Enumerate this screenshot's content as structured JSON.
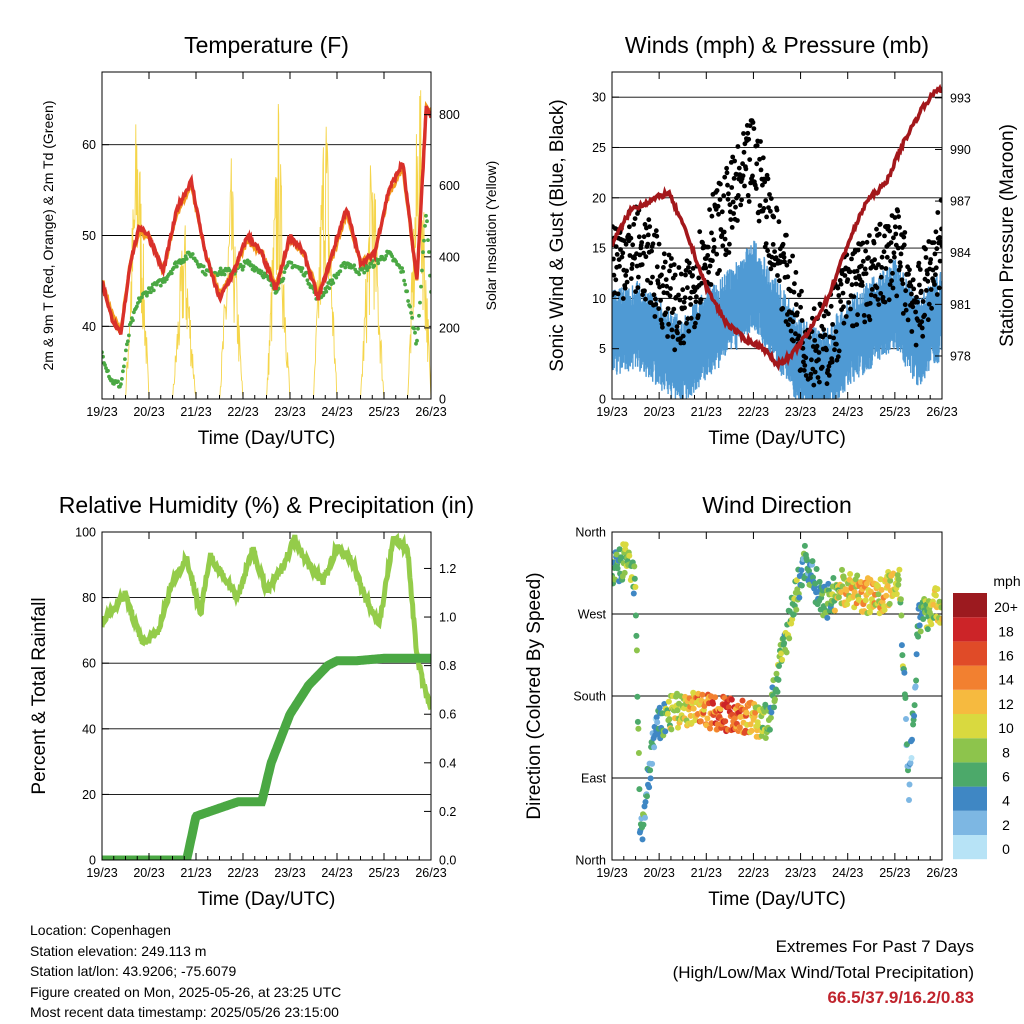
{
  "chart_data": [
    {
      "type": "line",
      "title": "Temperature (F)",
      "xlabel": "Time (Day/UTC)",
      "ylabel": "2m & 9m T (Red, Orange) & 2m Td (Green)",
      "y2label": "Solar Insolation (Yellow)",
      "x_ticks": [
        "19/23",
        "20/23",
        "21/23",
        "22/23",
        "23/23",
        "24/23",
        "25/23",
        "26/23"
      ],
      "ylim": [
        32,
        68
      ],
      "y_ticks": [
        40,
        50,
        60
      ],
      "y2lim": [
        0,
        920
      ],
      "y2_ticks": [
        0,
        200,
        400,
        600,
        800
      ],
      "grid_y": [
        40,
        50,
        60
      ],
      "series": [
        {
          "name": "2m T",
          "color": "#d9302a",
          "axis": "left",
          "x": [
            0,
            0.2,
            0.4,
            0.6,
            0.8,
            1.0,
            1.3,
            1.6,
            1.9,
            2.2,
            2.5,
            2.8,
            3.1,
            3.4,
            3.7,
            4.0,
            4.3,
            4.6,
            4.9,
            5.2,
            5.5,
            5.8,
            6.1,
            6.4,
            6.7,
            6.9,
            7.0
          ],
          "y": [
            45,
            41,
            39,
            47,
            51,
            50,
            46,
            53,
            56,
            48,
            43,
            46,
            50,
            48,
            44,
            50,
            48,
            43,
            48,
            53,
            47,
            48,
            55,
            58,
            45,
            64,
            63
          ]
        },
        {
          "name": "9m T",
          "color": "#f39a1e",
          "axis": "left",
          "x": [
            0,
            0.2,
            0.4,
            0.6,
            0.8,
            1.0,
            1.3,
            1.6,
            1.9,
            2.2,
            2.5,
            2.8,
            3.1,
            3.4,
            3.7,
            4.0,
            4.3,
            4.6,
            4.9,
            5.2,
            5.5,
            5.8,
            6.1,
            6.4,
            6.7,
            6.9,
            7.0
          ],
          "y": [
            45,
            41.5,
            39.5,
            47,
            50.5,
            50,
            46,
            52.5,
            55.5,
            48,
            43.5,
            46,
            49.5,
            48,
            44.5,
            49.5,
            48,
            43.5,
            47.5,
            52.5,
            47,
            48,
            54.5,
            57.5,
            45,
            64.5,
            63.5
          ]
        },
        {
          "name": "2m Td",
          "color": "#4aa843",
          "axis": "left",
          "x": [
            0,
            0.2,
            0.4,
            0.6,
            0.8,
            1.0,
            1.3,
            1.6,
            1.9,
            2.2,
            2.5,
            2.8,
            3.1,
            3.4,
            3.7,
            4.0,
            4.3,
            4.6,
            4.9,
            5.2,
            5.5,
            5.8,
            6.1,
            6.4,
            6.7,
            6.9,
            7.0
          ],
          "y": [
            37,
            34,
            33.5,
            40,
            43,
            44,
            45,
            47,
            48,
            46,
            46,
            46,
            47,
            46,
            44,
            47,
            46,
            43,
            45,
            47,
            46,
            47,
            48,
            46,
            38,
            53,
            44
          ]
        },
        {
          "name": "Solar Insolation",
          "color": "#f5d54a",
          "axis": "right",
          "x": [
            0.5,
            0.75,
            1.0,
            1.5,
            1.75,
            2.0,
            2.5,
            2.75,
            3.0,
            3.5,
            3.75,
            4.0,
            4.5,
            4.75,
            5.0,
            5.5,
            5.75,
            6.0,
            6.5,
            6.75,
            7.0
          ],
          "y": [
            0,
            830,
            0,
            0,
            500,
            0,
            0,
            620,
            0,
            0,
            780,
            0,
            0,
            860,
            0,
            0,
            720,
            0,
            0,
            900,
            0
          ]
        }
      ]
    },
    {
      "type": "scatter",
      "title": "Winds (mph) & Pressure (mb)",
      "xlabel": "Time (Day/UTC)",
      "ylabel": "Sonic Wind & Gust (Blue, Black)",
      "y2label": "Station Pressure (Maroon)",
      "x_ticks": [
        "19/23",
        "20/23",
        "21/23",
        "22/23",
        "23/23",
        "24/23",
        "25/23",
        "26/23"
      ],
      "ylim": [
        0,
        32.5
      ],
      "y_ticks": [
        0,
        5,
        10,
        15,
        20,
        25,
        30
      ],
      "y2lim": [
        975.5,
        994.5
      ],
      "y2_ticks": [
        978,
        981,
        984,
        987,
        990,
        993
      ],
      "grid_y": [
        5,
        10,
        15,
        20,
        25,
        30
      ],
      "series": [
        {
          "name": "Sonic Wind",
          "color": "#4f9ad4",
          "axis": "left",
          "x": [
            0,
            0.5,
            1.0,
            1.5,
            2.0,
            2.5,
            3.0,
            3.5,
            4.0,
            4.5,
            5.0,
            5.5,
            6.0,
            6.5,
            7.0
          ],
          "y": [
            7,
            8,
            6,
            4,
            7,
            9,
            12,
            8,
            4,
            3,
            6,
            8,
            10,
            6,
            9
          ]
        },
        {
          "name": "Gust",
          "color": "#000000",
          "axis": "left",
          "x": [
            0,
            0.5,
            1.0,
            1.5,
            2.0,
            2.5,
            3.0,
            3.5,
            4.0,
            4.5,
            5.0,
            5.5,
            6.0,
            6.5,
            7.0
          ],
          "y": [
            14,
            15,
            12,
            8,
            15,
            19,
            24,
            15,
            7,
            5,
            11,
            12,
            15,
            9,
            16
          ]
        },
        {
          "name": "Station Pressure",
          "color": "#a3171b",
          "axis": "right",
          "x": [
            0,
            0.4,
            0.8,
            1.2,
            1.6,
            2.0,
            2.4,
            2.8,
            3.2,
            3.5,
            3.8,
            4.2,
            4.6,
            5.0,
            5.4,
            5.8,
            6.2,
            6.6,
            6.9,
            7.0
          ],
          "y": [
            984.5,
            986.5,
            987,
            987.5,
            985,
            982,
            980,
            979,
            978.5,
            977.5,
            978,
            979.5,
            981.5,
            984.5,
            987,
            988,
            990.5,
            992.5,
            993.5,
            993.5
          ]
        }
      ]
    },
    {
      "type": "line",
      "title": "Relative Humidity (%) & Precipitation (in)",
      "xlabel": "Time (Day/UTC)",
      "ylabel": "Percent & Total Rainfall",
      "x_ticks": [
        "19/23",
        "20/23",
        "21/23",
        "22/23",
        "23/23",
        "24/23",
        "25/23",
        "26/23"
      ],
      "ylim": [
        0,
        100
      ],
      "y_ticks": [
        0,
        20,
        40,
        60,
        80,
        100
      ],
      "y2lim": [
        0,
        1.35
      ],
      "y2_ticks": [
        0.0,
        0.2,
        0.4,
        0.6,
        0.8,
        1.0,
        1.2
      ],
      "grid_y": [
        20,
        40,
        60,
        80
      ],
      "series": [
        {
          "name": "Relative Humidity",
          "color": "#94cc4a",
          "axis": "left",
          "x": [
            0,
            0.2,
            0.5,
            0.7,
            0.9,
            1.2,
            1.5,
            1.8,
            2.1,
            2.3,
            2.6,
            2.9,
            3.2,
            3.5,
            3.8,
            4.1,
            4.4,
            4.7,
            5.0,
            5.3,
            5.6,
            5.9,
            6.2,
            6.5,
            6.7,
            6.9,
            7.0
          ],
          "y": [
            72,
            76,
            81,
            72,
            66,
            70,
            85,
            92,
            75,
            93,
            86,
            80,
            95,
            82,
            88,
            98,
            90,
            85,
            95,
            92,
            80,
            72,
            98,
            95,
            62,
            50,
            47
          ]
        },
        {
          "name": "Total Precipitation",
          "color": "#4aa843",
          "axis": "right",
          "x": [
            0,
            1.8,
            2.0,
            2.3,
            2.9,
            3.4,
            3.6,
            3.8,
            4.0,
            4.4,
            4.8,
            5.0,
            5.4,
            6.0,
            7.0
          ],
          "y": [
            0,
            0,
            0.18,
            0.2,
            0.24,
            0.24,
            0.4,
            0.5,
            0.6,
            0.72,
            0.8,
            0.82,
            0.82,
            0.83,
            0.83
          ]
        }
      ]
    },
    {
      "type": "scatter",
      "title": "Wind Direction",
      "xlabel": "Time (Day/UTC)",
      "ylabel": "Direction (Colored By Speed)",
      "x_ticks": [
        "19/23",
        "20/23",
        "21/23",
        "22/23",
        "23/23",
        "24/23",
        "25/23",
        "26/23"
      ],
      "y_ticks": [
        "North",
        "East",
        "South",
        "West",
        "North"
      ],
      "ylim": [
        0,
        360
      ],
      "colorbar_title": "mph",
      "colorbar_labels": [
        "0",
        "2",
        "4",
        "6",
        "8",
        "10",
        "12",
        "14",
        "16",
        "18",
        "20+"
      ],
      "colorbar_colors": [
        "#b7e3f6",
        "#7db7e3",
        "#3f87c4",
        "#4ca96a",
        "#8dc44c",
        "#d9d93f",
        "#f6ba3f",
        "#f28030",
        "#e04b28",
        "#cc2428",
        "#9c1a1f"
      ],
      "series": [
        {
          "name": "Direction",
          "x": [
            0.1,
            0.3,
            0.5,
            0.6,
            0.7,
            0.9,
            1.2,
            1.5,
            2.0,
            2.5,
            3.0,
            3.3,
            3.8,
            4.1,
            4.5,
            4.9,
            5.3,
            5.7,
            6.1,
            6.3,
            6.5,
            6.8,
            7.0
          ],
          "y": [
            320,
            330,
            300,
            20,
            60,
            140,
            160,
            165,
            165,
            160,
            155,
            150,
            270,
            330,
            280,
            300,
            290,
            290,
            310,
            80,
            260,
            280,
            280
          ],
          "speed": [
            5,
            8,
            7,
            4,
            5,
            3,
            8,
            10,
            14,
            16,
            12,
            7,
            8,
            4,
            6,
            10,
            12,
            11,
            9,
            3,
            5,
            9,
            10
          ]
        }
      ]
    }
  ],
  "info": {
    "location": "Location: Copenhagen",
    "elevation": "Station elevation: 249.113 m",
    "latlon": "Station lat/lon: 43.9206; -75.6079",
    "created": "Figure created on Mon, 2025-05-26, at 23:25 UTC",
    "timestamp": "Most recent data timestamp: 2025/05/26 23:15:00"
  },
  "extremes": {
    "line1": "Extremes For Past 7 Days",
    "line2": "(High/Low/Max Wind/Total Precipitation)",
    "values": "66.5/37.9/16.2/0.83",
    "value_color": "#c0242d"
  }
}
